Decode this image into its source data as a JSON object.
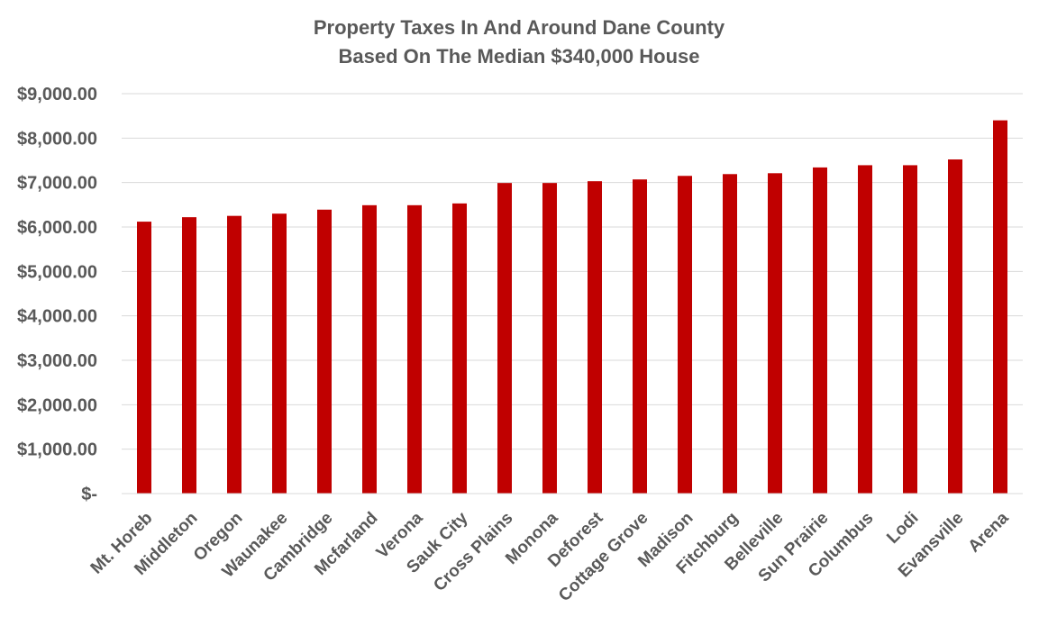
{
  "chart_data": {
    "type": "bar",
    "title": [
      "Property Taxes In And Around Dane County",
      "Based On The Median $340,000 House"
    ],
    "xlabel": "",
    "ylabel": "",
    "ylim": [
      0,
      9000
    ],
    "yticks": [
      {
        "value": 0,
        "label": "$-"
      },
      {
        "value": 1000,
        "label": "$1,000.00"
      },
      {
        "value": 2000,
        "label": "$2,000.00"
      },
      {
        "value": 3000,
        "label": "$3,000.00"
      },
      {
        "value": 4000,
        "label": "$4,000.00"
      },
      {
        "value": 5000,
        "label": "$5,000.00"
      },
      {
        "value": 6000,
        "label": "$6,000.00"
      },
      {
        "value": 7000,
        "label": "$7,000.00"
      },
      {
        "value": 8000,
        "label": "$8,000.00"
      },
      {
        "value": 9000,
        "label": "$9,000.00"
      }
    ],
    "categories": [
      "Mt. Horeb",
      "Middleton",
      "Oregon",
      "Waunakee",
      "Cambridge",
      "Mcfarland",
      "Verona",
      "Sauk City",
      "Cross Plains",
      "Monona",
      "Deforest",
      "Cottage Grove",
      "Madison",
      "Fitchburg",
      "Belleville",
      "Sun Prairie",
      "Columbus",
      "Lodi",
      "Evansville",
      "Arena"
    ],
    "values": [
      6120,
      6220,
      6250,
      6300,
      6390,
      6490,
      6490,
      6530,
      6990,
      6990,
      7030,
      7070,
      7150,
      7190,
      7210,
      7340,
      7390,
      7390,
      7520,
      8400
    ],
    "bar_color": "#c00000",
    "grid": true,
    "legend": "none"
  }
}
